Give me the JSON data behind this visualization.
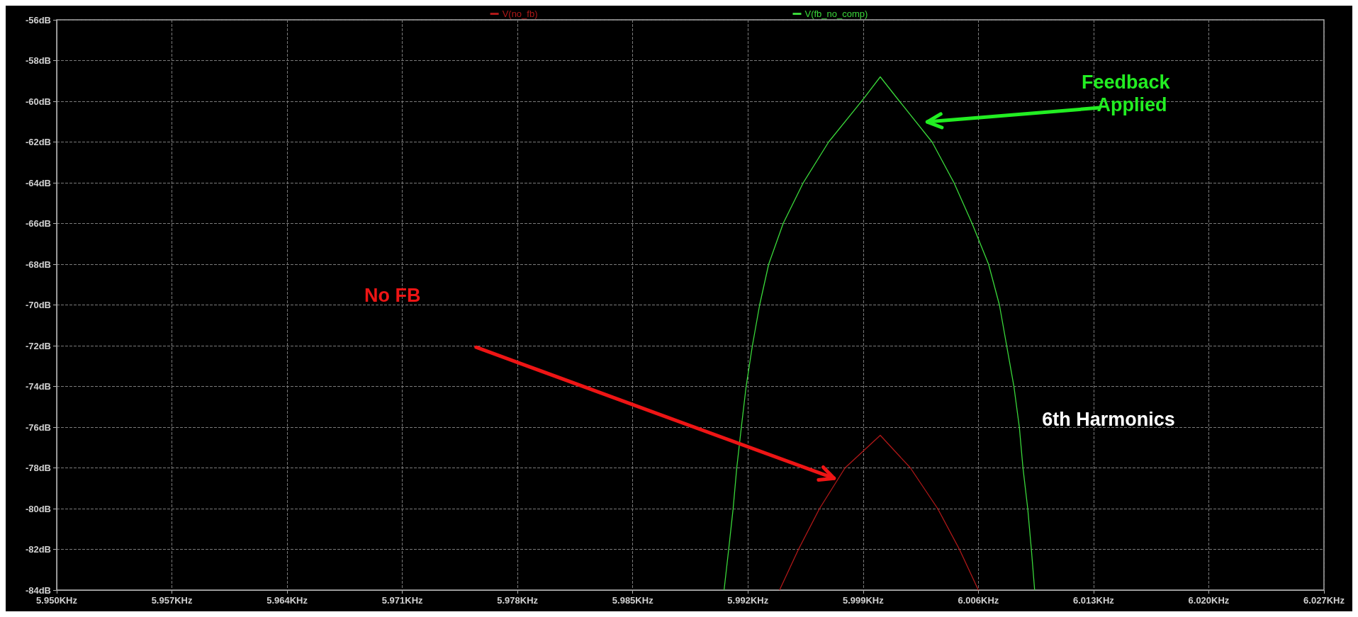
{
  "chart_data": {
    "type": "line",
    "xlim": [
      5.95,
      6.027
    ],
    "ylim": [
      -84,
      -56
    ],
    "xticks": [
      {
        "value": 5.95,
        "label": "5.950KHz"
      },
      {
        "value": 5.957,
        "label": "5.957KHz"
      },
      {
        "value": 5.964,
        "label": "5.964KHz"
      },
      {
        "value": 5.971,
        "label": "5.971KHz"
      },
      {
        "value": 5.978,
        "label": "5.978KHz"
      },
      {
        "value": 5.985,
        "label": "5.985KHz"
      },
      {
        "value": 5.992,
        "label": "5.992KHz"
      },
      {
        "value": 5.999,
        "label": "5.999KHz"
      },
      {
        "value": 6.006,
        "label": "6.006KHz"
      },
      {
        "value": 6.013,
        "label": "6.013KHz"
      },
      {
        "value": 6.02,
        "label": "6.020KHz"
      },
      {
        "value": 6.027,
        "label": "6.027KHz"
      }
    ],
    "yticks": [
      {
        "value": -84,
        "label": "-84dB"
      },
      {
        "value": -82,
        "label": "-82dB"
      },
      {
        "value": -80,
        "label": "-80dB"
      },
      {
        "value": -78,
        "label": "-78dB"
      },
      {
        "value": -76,
        "label": "-76dB"
      },
      {
        "value": -74,
        "label": "-74dB"
      },
      {
        "value": -72,
        "label": "-72dB"
      },
      {
        "value": -70,
        "label": "-70dB"
      },
      {
        "value": -68,
        "label": "-68dB"
      },
      {
        "value": -66,
        "label": "-66dB"
      },
      {
        "value": -64,
        "label": "-64dB"
      },
      {
        "value": -62,
        "label": "-62dB"
      },
      {
        "value": -60,
        "label": "-60dB"
      },
      {
        "value": -58,
        "label": "-58dB"
      },
      {
        "value": -56,
        "label": "-56dB"
      }
    ],
    "grid": true,
    "legend": "top",
    "line_style": "solid",
    "marker": "none",
    "series": [
      {
        "name": "V(no_fb)",
        "color": "#b01818",
        "x": [
          5.99392,
          5.99507,
          5.99635,
          5.9979,
          6.00004,
          6.00187,
          6.00353,
          6.00485,
          6.006
        ],
        "values": [
          -84,
          -82,
          -80,
          -78,
          -76.4,
          -78,
          -80,
          -82,
          -84
        ]
      },
      {
        "name": "V(fb_no_comp)",
        "color": "#3ad83a",
        "x": [
          5.99055,
          5.99083,
          5.9911,
          5.99132,
          5.9916,
          5.99189,
          5.99227,
          5.99271,
          5.99326,
          5.99414,
          5.99536,
          5.9969,
          5.999,
          6.00004,
          6.00121,
          6.00319,
          6.00452,
          6.00562,
          6.00662,
          6.00728,
          6.00772,
          6.00816,
          6.00849,
          6.00871,
          6.009,
          6.00922,
          6.00942
        ],
        "values": [
          -84,
          -82,
          -80,
          -78,
          -76,
          -74,
          -72,
          -70,
          -68,
          -66,
          -64,
          -62,
          -59.9,
          -58.8,
          -60,
          -62,
          -64,
          -66,
          -68,
          -70,
          -72,
          -74,
          -76,
          -78,
          -80,
          -82,
          -84
        ]
      }
    ],
    "annotations": [
      "Feedback\n   Applied",
      "No FB",
      "6th Harmonics"
    ]
  }
}
